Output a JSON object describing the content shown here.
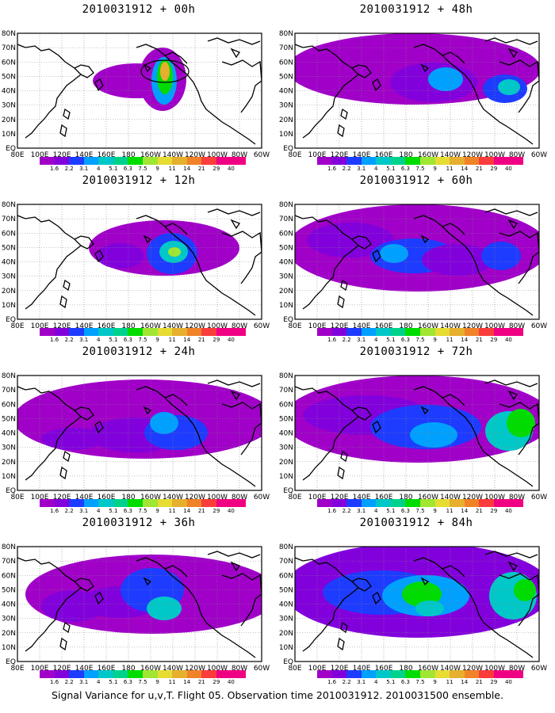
{
  "caption": "Signal Variance for u,v,T. Flight 05. Observation time 2010031912. 2010031500 ensemble.",
  "lat_labels": [
    "EQ",
    "10N",
    "20N",
    "30N",
    "40N",
    "50N",
    "60N",
    "70N",
    "80N"
  ],
  "lon_labels": [
    "80E",
    "100E",
    "120E",
    "140E",
    "160E",
    "180",
    "160W",
    "140W",
    "120W",
    "100W",
    "80W",
    "60W"
  ],
  "colorbar": {
    "labels": [
      "1.6",
      "2.2",
      "3.1",
      "4",
      "5.1",
      "6.3",
      "7.5",
      "9",
      "11",
      "14",
      "21",
      "29",
      "40"
    ],
    "colors": [
      "#a000c8",
      "#8200dc",
      "#1e3cff",
      "#00a0ff",
      "#00c8c8",
      "#00d28c",
      "#00dc00",
      "#a0e632",
      "#e6dc32",
      "#e6af2d",
      "#f08228",
      "#fa3c3c",
      "#f00082"
    ]
  },
  "panels": [
    {
      "title": "2010031912 + 00h"
    },
    {
      "title": "2010031912 + 48h"
    },
    {
      "title": "2010031912 + 12h"
    },
    {
      "title": "2010031912 + 60h"
    },
    {
      "title": "2010031912 + 24h"
    },
    {
      "title": "2010031912 + 72h"
    },
    {
      "title": "2010031912 + 36h"
    },
    {
      "title": "2010031912 + 84h"
    }
  ]
}
